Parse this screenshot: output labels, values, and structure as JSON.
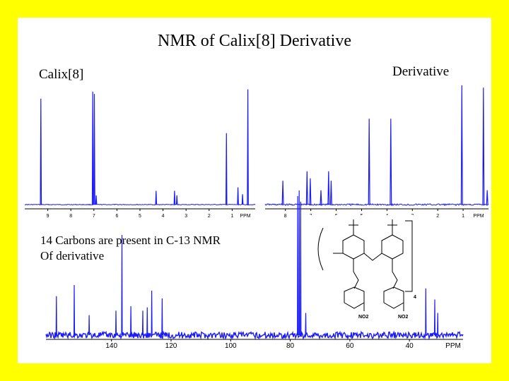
{
  "slide": {
    "title": "NMR of Calix[8] Derivative",
    "label_calix": "Calix[8]",
    "label_derivative": "Derivative",
    "caption_line1": "14 Carbons are present in C-13 NMR",
    "caption_line2": "Of derivative",
    "background_color": "#ffff00",
    "spectrum_color": "#1a1aff"
  },
  "structure": {
    "nitro_left": "NO2",
    "nitro_right": "NO2",
    "repeat_subscript": "4"
  },
  "chart_data": [
    {
      "type": "line",
      "xlabel": "PPM",
      "x_ticks": [
        "9",
        "8",
        "7",
        "6",
        "5",
        "4",
        "3",
        "2",
        "1"
      ],
      "xlim": [
        10,
        0
      ],
      "peaks": [
        {
          "x": 9.3,
          "y": 0.92
        },
        {
          "x": 7.05,
          "y": 0.98
        },
        {
          "x": 6.98,
          "y": 0.96
        },
        {
          "x": 6.9,
          "y": 0.08
        },
        {
          "x": 4.3,
          "y": 0.12
        },
        {
          "x": 3.5,
          "y": 0.12
        },
        {
          "x": 3.4,
          "y": 0.08
        },
        {
          "x": 1.25,
          "y": 0.62
        },
        {
          "x": 0.75,
          "y": 0.15
        },
        {
          "x": 0.55,
          "y": 0.09
        },
        {
          "x": 0.32,
          "y": 1.0
        }
      ]
    },
    {
      "type": "line",
      "xlabel": "PPM",
      "x_ticks": [
        "8",
        "7",
        "6",
        "5",
        "4",
        "3",
        "2",
        "1"
      ],
      "xlim": [
        8.8,
        0
      ],
      "peaks": [
        {
          "x": 8.1,
          "y": 0.2
        },
        {
          "x": 7.15,
          "y": 0.28
        },
        {
          "x": 7.02,
          "y": 0.22
        },
        {
          "x": 6.6,
          "y": 0.12
        },
        {
          "x": 6.3,
          "y": 0.28
        },
        {
          "x": 6.2,
          "y": 0.2
        },
        {
          "x": 4.7,
          "y": 0.72
        },
        {
          "x": 3.85,
          "y": 0.72
        },
        {
          "x": 1.05,
          "y": 1.0
        },
        {
          "x": 0.2,
          "y": 0.98
        },
        {
          "x": 0.05,
          "y": 0.12
        }
      ]
    },
    {
      "type": "line",
      "xlabel": "PPM",
      "x_ticks": [
        "140",
        "120",
        "100",
        "80",
        "60",
        "40"
      ],
      "xlim": [
        162,
        22
      ],
      "peaks": [
        {
          "x": 158.5,
          "y": 0.35
        },
        {
          "x": 152.5,
          "y": 0.45
        },
        {
          "x": 147.5,
          "y": 0.18
        },
        {
          "x": 138.5,
          "y": 0.22
        },
        {
          "x": 136.5,
          "y": 0.9
        },
        {
          "x": 133.5,
          "y": 0.26
        },
        {
          "x": 129.5,
          "y": 0.22
        },
        {
          "x": 128,
          "y": 0.25
        },
        {
          "x": 126.5,
          "y": 0.4
        },
        {
          "x": 123,
          "y": 0.33
        },
        {
          "x": 77.5,
          "y": 1.25
        },
        {
          "x": 77.0,
          "y": 1.3
        },
        {
          "x": 76.5,
          "y": 1.2
        },
        {
          "x": 74.8,
          "y": 0.2
        },
        {
          "x": 34.5,
          "y": 0.42
        },
        {
          "x": 31.5,
          "y": 0.32
        },
        {
          "x": 30.5,
          "y": 0.2
        }
      ]
    }
  ]
}
